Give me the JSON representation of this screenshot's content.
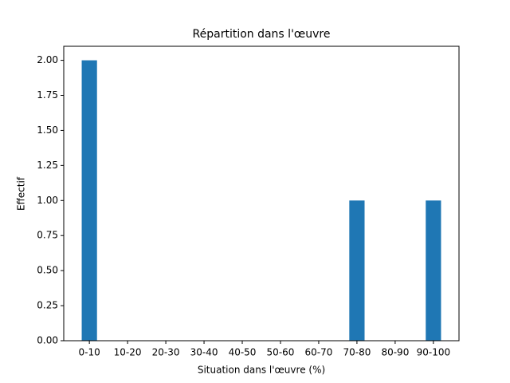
{
  "chart_data": {
    "type": "bar",
    "title": "Répartition dans l'œuvre",
    "x_label": "Situation dans l'œuvre (%)",
    "y_label": "Effectif",
    "categories": [
      "0-10",
      "10-20",
      "20-30",
      "30-40",
      "40-50",
      "50-60",
      "60-70",
      "70-80",
      "80-90",
      "90-100"
    ],
    "values": [
      2,
      0,
      0,
      0,
      0,
      0,
      0,
      1,
      0,
      1
    ],
    "color": "#1f77b4",
    "ylim": [
      0,
      2.1
    ],
    "yticks": [
      {
        "value": 0,
        "label": "0.00"
      },
      {
        "value": 0.25,
        "label": "0.25"
      },
      {
        "value": 0.5,
        "label": "0.50"
      },
      {
        "value": 0.75,
        "label": "0.75"
      },
      {
        "value": 1,
        "label": "1.00"
      },
      {
        "value": 1.25,
        "label": "1.25"
      },
      {
        "value": 1.5,
        "label": "1.50"
      },
      {
        "value": 1.75,
        "label": "1.75"
      },
      {
        "value": 2,
        "label": "2.00"
      }
    ],
    "grid": false
  }
}
